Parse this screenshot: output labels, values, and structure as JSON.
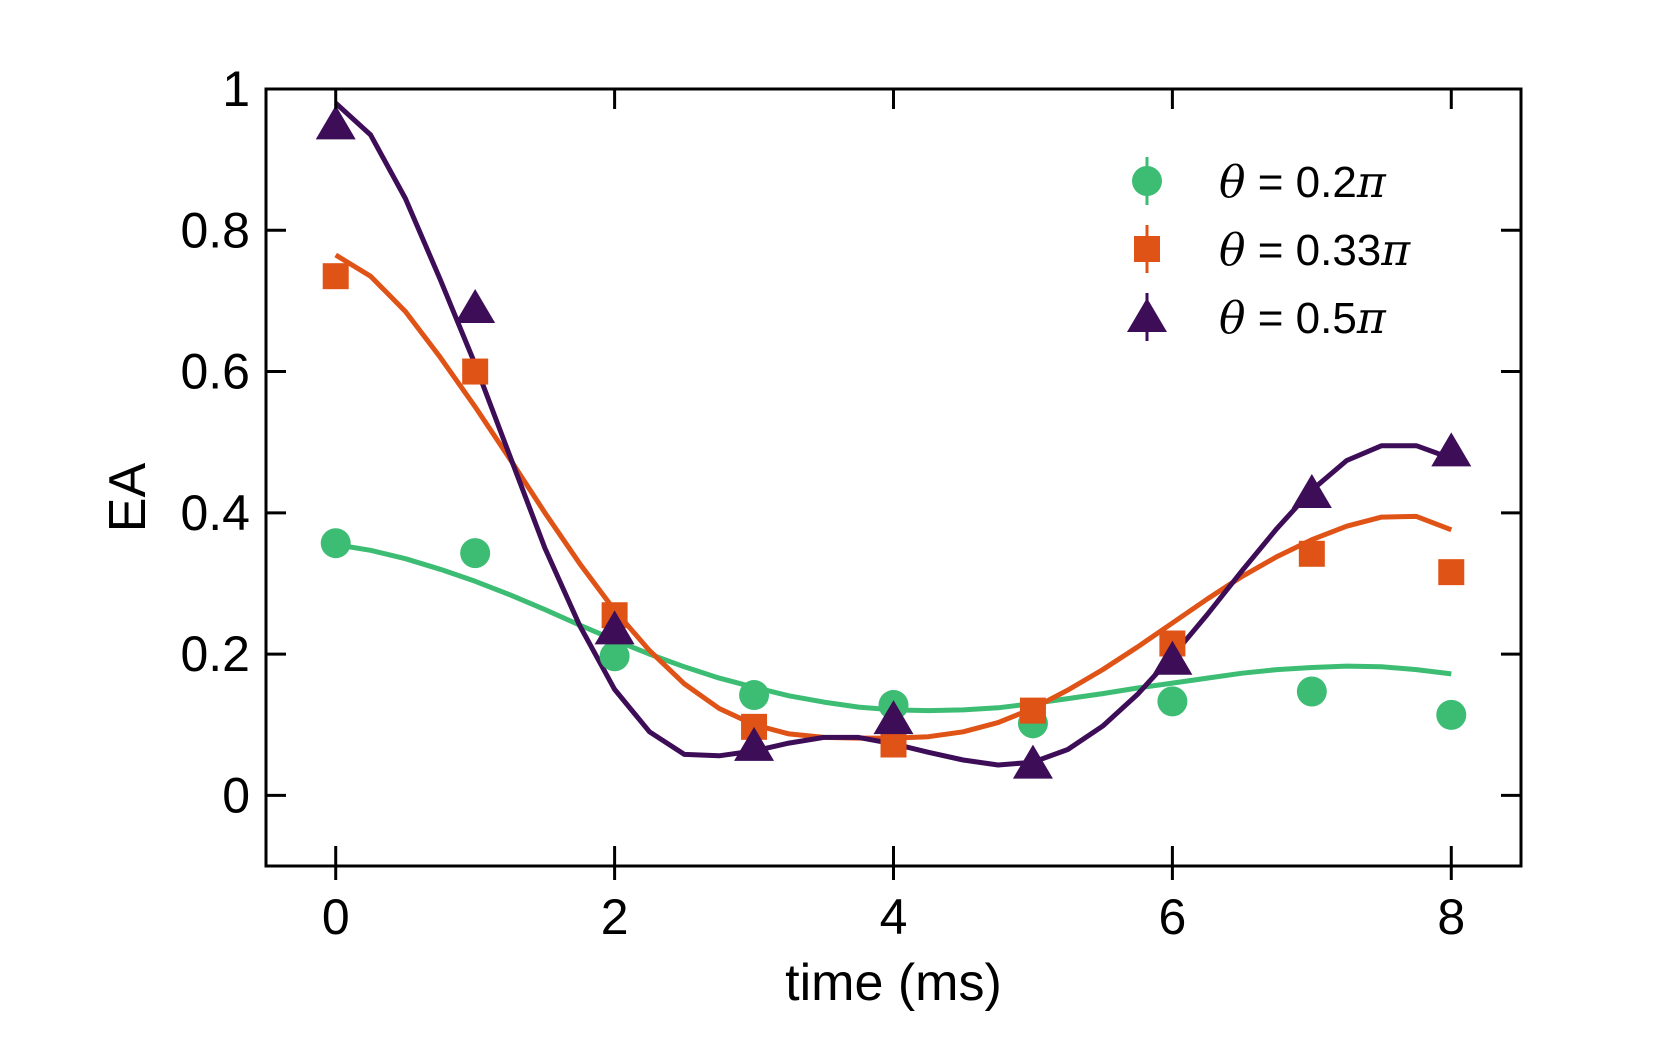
{
  "chart_data": {
    "type": "scatter",
    "xlabel": "time (ms)",
    "ylabel": "EA",
    "xlim": [
      -0.5,
      8.5
    ],
    "ylim": [
      -0.1,
      1.0
    ],
    "xticks": [
      0,
      2,
      4,
      6,
      8
    ],
    "yticks": [
      0,
      0.2,
      0.4,
      0.6,
      0.8,
      1
    ],
    "xtick_labels": [
      "0",
      "2",
      "4",
      "6",
      "8"
    ],
    "ytick_labels": [
      "0",
      "0.2",
      "0.4",
      "0.6",
      "0.8",
      "1"
    ],
    "grid": false,
    "legend_position": "top-right",
    "series": [
      {
        "name": "θ = 0.2π",
        "legend_prefix": "θ",
        "legend_middle": " = 0.2",
        "legend_suffix": "π",
        "color": "#3dbd74",
        "marker": "circle",
        "x": [
          0,
          1,
          2,
          3,
          4,
          5,
          6,
          7,
          8
        ],
        "y": [
          0.357,
          0.343,
          0.197,
          0.142,
          0.128,
          0.102,
          0.133,
          0.147,
          0.114
        ],
        "fit": {
          "x": [
            0,
            0.25,
            0.5,
            0.75,
            1.0,
            1.25,
            1.5,
            1.75,
            2.0,
            2.25,
            2.5,
            2.75,
            3.0,
            3.25,
            3.5,
            3.75,
            4.0,
            4.25,
            4.5,
            4.75,
            5.0,
            5.25,
            5.5,
            5.75,
            6.0,
            6.25,
            6.5,
            6.75,
            7.0,
            7.25,
            7.5,
            7.75,
            8.0
          ],
          "y": [
            0.355,
            0.347,
            0.335,
            0.32,
            0.303,
            0.284,
            0.263,
            0.241,
            0.22,
            0.2,
            0.182,
            0.166,
            0.153,
            0.141,
            0.132,
            0.125,
            0.121,
            0.12,
            0.121,
            0.124,
            0.13,
            0.137,
            0.144,
            0.152,
            0.159,
            0.166,
            0.173,
            0.178,
            0.181,
            0.183,
            0.182,
            0.178,
            0.172
          ]
        }
      },
      {
        "name": "θ = 0.33π",
        "legend_prefix": "θ",
        "legend_middle": " = 0.33",
        "legend_suffix": "π",
        "color": "#e05317",
        "marker": "square",
        "x": [
          0,
          1,
          2,
          3,
          4,
          5,
          6,
          7,
          8
        ],
        "y": [
          0.735,
          0.6,
          0.255,
          0.097,
          0.072,
          0.12,
          0.215,
          0.342,
          0.316
        ],
        "fit": {
          "x": [
            0,
            0.25,
            0.5,
            0.75,
            1.0,
            1.25,
            1.5,
            1.75,
            2.0,
            2.25,
            2.5,
            2.75,
            3.0,
            3.25,
            3.5,
            3.75,
            4.0,
            4.25,
            4.5,
            4.75,
            5.0,
            5.25,
            5.5,
            5.75,
            6.0,
            6.25,
            6.5,
            6.75,
            7.0,
            7.25,
            7.5,
            7.75,
            8.0
          ],
          "y": [
            0.765,
            0.735,
            0.685,
            0.62,
            0.55,
            0.476,
            0.4,
            0.328,
            0.262,
            0.205,
            0.158,
            0.123,
            0.1,
            0.087,
            0.082,
            0.081,
            0.081,
            0.083,
            0.09,
            0.103,
            0.123,
            0.149,
            0.178,
            0.21,
            0.244,
            0.278,
            0.31,
            0.338,
            0.362,
            0.381,
            0.394,
            0.395,
            0.376
          ]
        }
      },
      {
        "name": "θ = 0.5π",
        "legend_prefix": "θ",
        "legend_middle": " = 0.5",
        "legend_suffix": "π",
        "color": "#3d0d58",
        "marker": "triangle",
        "x": [
          0,
          1,
          2,
          3,
          4,
          5,
          6,
          7,
          8
        ],
        "y": [
          0.95,
          0.69,
          0.235,
          0.07,
          0.108,
          0.045,
          0.192,
          0.428,
          0.487
        ],
        "fit": {
          "x": [
            0,
            0.25,
            0.5,
            0.75,
            1.0,
            1.25,
            1.5,
            1.75,
            2.0,
            2.25,
            2.5,
            2.75,
            3.0,
            3.25,
            3.5,
            3.75,
            4.0,
            4.25,
            4.5,
            4.75,
            5.0,
            5.25,
            5.5,
            5.75,
            6.0,
            6.25,
            6.5,
            6.75,
            7.0,
            7.25,
            7.5,
            7.75,
            8.0
          ],
          "y": [
            0.98,
            0.935,
            0.845,
            0.73,
            0.61,
            0.48,
            0.35,
            0.24,
            0.15,
            0.09,
            0.058,
            0.056,
            0.063,
            0.074,
            0.082,
            0.082,
            0.073,
            0.061,
            0.05,
            0.043,
            0.047,
            0.065,
            0.098,
            0.143,
            0.197,
            0.256,
            0.318,
            0.378,
            0.432,
            0.474,
            0.495,
            0.495,
            0.477
          ]
        }
      }
    ]
  }
}
